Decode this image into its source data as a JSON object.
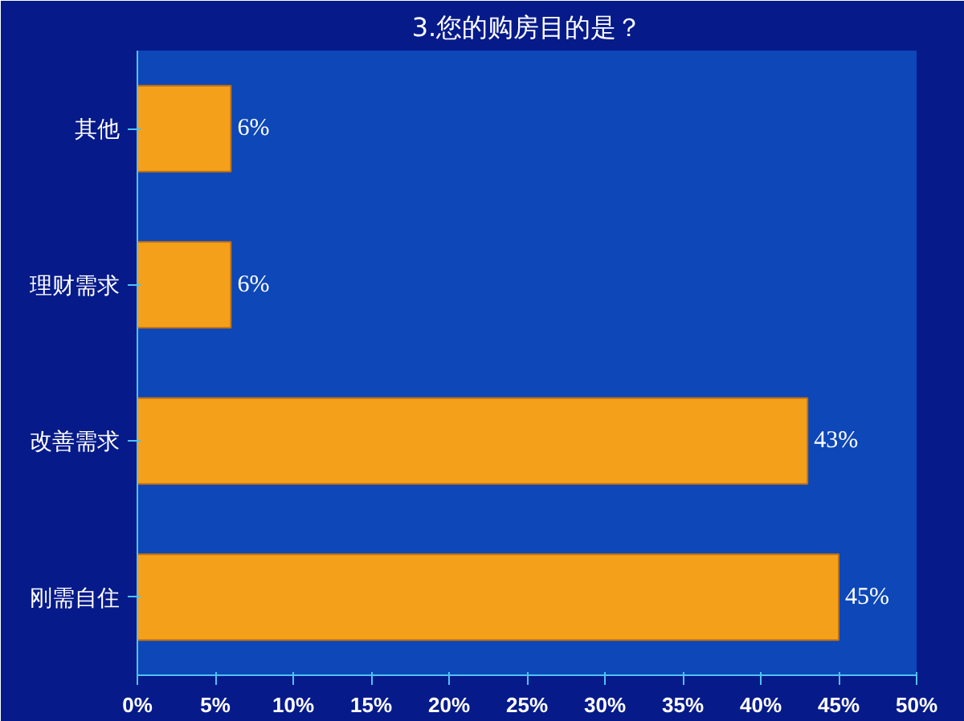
{
  "chart_data": {
    "type": "bar",
    "orientation": "horizontal",
    "title": "3.您的购房目的是？",
    "categories": [
      "其他",
      "理财需求",
      "改善需求",
      "刚需自住"
    ],
    "values": [
      6,
      6,
      43,
      45
    ],
    "color": "#f5a01a",
    "value_labels": [
      "6%",
      "6%",
      "43%",
      "45%"
    ],
    "xlim": [
      0,
      50
    ],
    "xticks": [
      {
        "value": 0,
        "label": "0%"
      },
      {
        "value": 5,
        "label": "5%"
      },
      {
        "value": 10,
        "label": "10%"
      },
      {
        "value": 15,
        "label": "15%"
      },
      {
        "value": 20,
        "label": "20%"
      },
      {
        "value": 25,
        "label": "25%"
      },
      {
        "value": 30,
        "label": "30%"
      },
      {
        "value": 35,
        "label": "35%"
      },
      {
        "value": 40,
        "label": "40%"
      },
      {
        "value": 45,
        "label": "45%"
      },
      {
        "value": 50,
        "label": "50%"
      }
    ],
    "grid": false
  }
}
